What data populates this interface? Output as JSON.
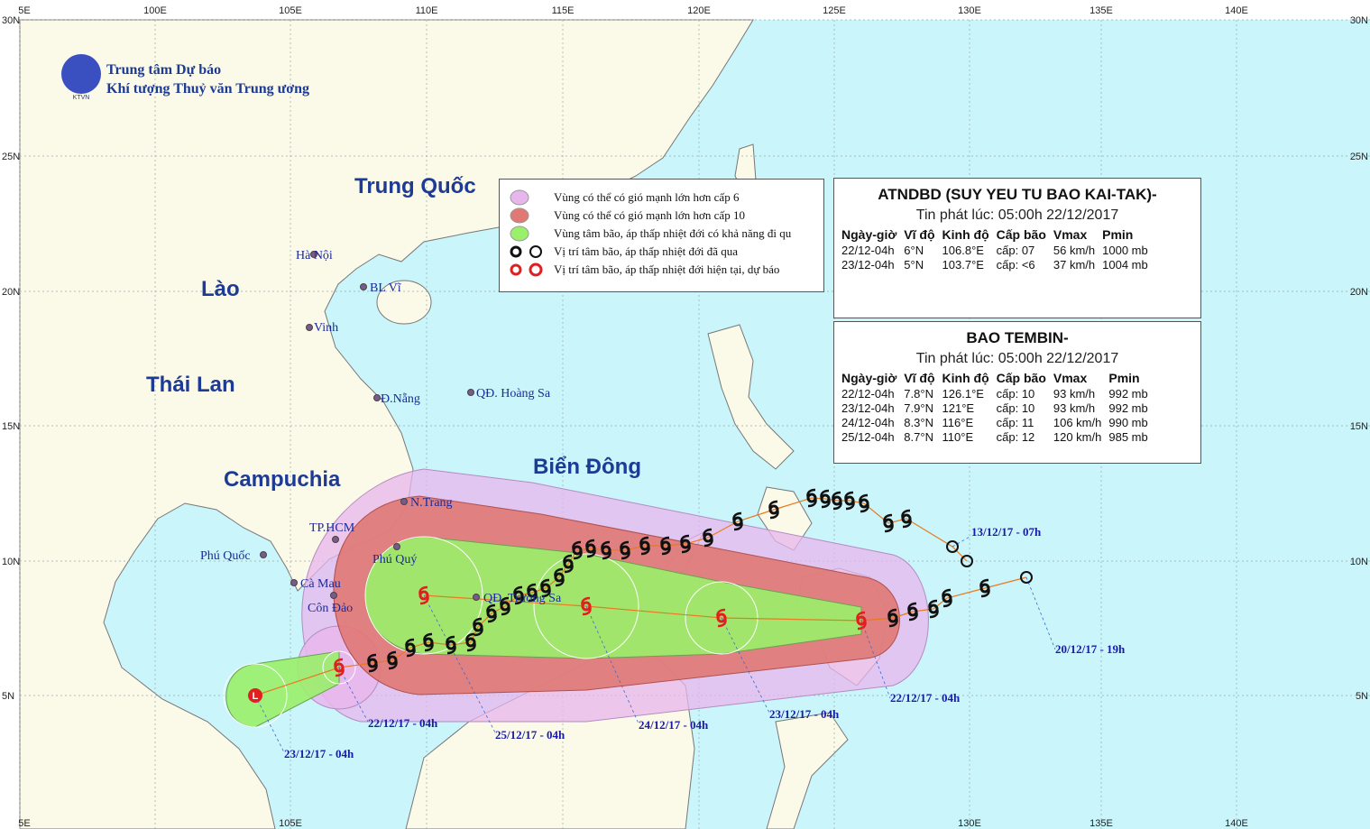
{
  "header": {
    "org_line1": "Trung tâm Dự báo",
    "org_line2": "Khí tượng Thuỷ văn Trung ương",
    "logo_text": "KTVN"
  },
  "lon_labels_top": [
    "5E",
    "100E",
    "105E",
    "110E",
    "115E",
    "120E",
    "125E",
    "130E",
    "135E",
    "140E"
  ],
  "lon_labels_bottom": [
    "5E",
    "105E",
    "130E",
    "135E",
    "140E"
  ],
  "lat_labels_left": [
    "30N",
    "25N",
    "20N",
    "15N",
    "10N",
    "5N"
  ],
  "lat_labels_right": [
    "30N",
    "25N",
    "20N",
    "15N",
    "10N",
    "5N"
  ],
  "regions": [
    "Trung Quốc",
    "Lào",
    "Thái Lan",
    "Campuchia",
    "Biển Đông"
  ],
  "places": [
    "Hà Nội",
    "BL Vĩ",
    "Vinh",
    "Đ.Nẵng",
    "QĐ. Hoàng Sa",
    "N.Trang",
    "TP.HCM",
    "Phú Quốc",
    "Phú Quý",
    "QĐ. Trường Sa",
    "Cà Mau",
    "Côn Đảo"
  ],
  "legend": [
    "Vùng có thể có gió mạnh lớn hơn cấp 6",
    "Vùng có thể có gió mạnh lớn hơn cấp 10",
    "Vùng tâm bão, áp thấp nhiệt đới có khả năng đi qu",
    "Vị trí tâm bão, áp thấp nhiệt đới đã qua",
    "Vị trí tâm bão, áp thấp nhiệt đới hiện tại, dự báo"
  ],
  "tables": [
    {
      "title": "ATNDBD (SUY YEU TU BAO KAI-TAK)-",
      "issued": "Tin phát lúc: 05:00h 22/12/2017",
      "columns": [
        "Ngày-giờ",
        "Vĩ độ",
        "Kinh độ",
        "Cấp bão",
        "Vmax",
        "Pmin"
      ],
      "rows": [
        [
          "22/12-04h",
          "6°N",
          "106.8°E",
          "cấp: 07",
          "56 km/h",
          "1000 mb"
        ],
        [
          "23/12-04h",
          "5°N",
          "103.7°E",
          "cấp: <6",
          "37 km/h",
          "1004 mb"
        ]
      ]
    },
    {
      "title": "BAO TEMBIN-",
      "issued": "Tin phát lúc: 05:00h 22/12/2017",
      "columns": [
        "Ngày-giờ",
        "Vĩ độ",
        "Kinh độ",
        "Cấp bão",
        "Vmax",
        "Pmin"
      ],
      "rows": [
        [
          "22/12-04h",
          "7.8°N",
          "126.1°E",
          "cấp: 10",
          "93 km/h",
          "992 mb"
        ],
        [
          "23/12-04h",
          "7.9°N",
          "121°E",
          "cấp: 10",
          "93 km/h",
          "992 mb"
        ],
        [
          "24/12-04h",
          "8.3°N",
          "116°E",
          "cấp: 11",
          "106 km/h",
          "990 mb"
        ],
        [
          "25/12-04h",
          "8.7°N",
          "110°E",
          "cấp: 12",
          "120 km/h",
          "985 mb"
        ]
      ]
    }
  ],
  "track_labels": [
    "13/12/17 - 07h",
    "20/12/17 - 19h",
    "22/12/17 - 04h",
    "23/12/17 - 04h",
    "24/12/17 - 04h",
    "25/12/17 - 04h",
    "22/12/17 - 04h",
    "23/12/17 - 04h"
  ],
  "low_symbol": "L"
}
